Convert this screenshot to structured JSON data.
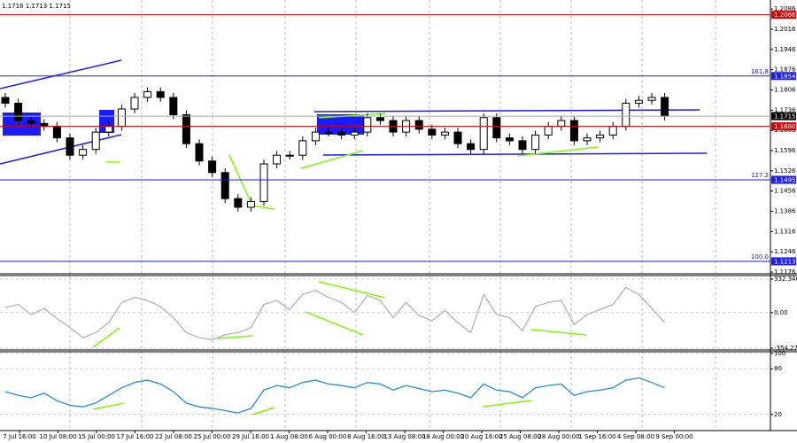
{
  "chart_data": [
    {
      "type": "candlestick",
      "title": "1.1716 1.1713 1.1715",
      "color": "#000000",
      "ylim": [
        1.1173,
        1.2117
      ],
      "yticks": [
        1.2086,
        1.2016,
        1.1946,
        1.1876,
        1.1806,
        1.1736,
        1.1666,
        1.1596,
        1.1526,
        1.1456,
        1.1386,
        1.1316,
        1.1246,
        1.1176
      ],
      "open": [
        1.178,
        1.176,
        1.17,
        1.169,
        1.168,
        1.164,
        1.158,
        1.16,
        1.166,
        1.168,
        1.174,
        1.178,
        1.18,
        1.178,
        1.172,
        1.162,
        1.156,
        1.152,
        1.143,
        1.14,
        1.142,
        1.155,
        1.158,
        1.158,
        1.163,
        1.166,
        1.166,
        1.165,
        1.166,
        1.171,
        1.17,
        1.166,
        1.17,
        1.167,
        1.165,
        1.166,
        1.162,
        1.16,
        1.171,
        1.164,
        1.163,
        1.16,
        1.165,
        1.168,
        1.17,
        1.163,
        1.164,
        1.165,
        1.168,
        1.176,
        1.177,
        1.178
      ],
      "high": [
        1.1795,
        1.1775,
        1.1715,
        1.1705,
        1.1695,
        1.1655,
        1.1615,
        1.1675,
        1.1695,
        1.1755,
        1.1795,
        1.1815,
        1.1815,
        1.1795,
        1.1735,
        1.1635,
        1.1575,
        1.1535,
        1.1445,
        1.1435,
        1.1565,
        1.1595,
        1.1595,
        1.1645,
        1.1675,
        1.1675,
        1.1675,
        1.1675,
        1.1725,
        1.1725,
        1.1715,
        1.1715,
        1.1715,
        1.1685,
        1.1675,
        1.1675,
        1.1635,
        1.1725,
        1.1725,
        1.1655,
        1.1645,
        1.1665,
        1.1695,
        1.1715,
        1.1715,
        1.1655,
        1.1665,
        1.1695,
        1.1775,
        1.1785,
        1.1795,
        1.1795
      ],
      "low": [
        1.1745,
        1.1685,
        1.1675,
        1.1665,
        1.1625,
        1.1565,
        1.1565,
        1.1585,
        1.1645,
        1.1665,
        1.1725,
        1.1765,
        1.1765,
        1.1705,
        1.1605,
        1.1545,
        1.1505,
        1.1415,
        1.1385,
        1.1385,
        1.1405,
        1.1535,
        1.1565,
        1.1565,
        1.1615,
        1.1645,
        1.1635,
        1.1635,
        1.1645,
        1.1685,
        1.1645,
        1.1645,
        1.1655,
        1.1635,
        1.1635,
        1.1605,
        1.1585,
        1.1585,
        1.1625,
        1.1615,
        1.1585,
        1.1585,
        1.1635,
        1.1665,
        1.1615,
        1.1615,
        1.1625,
        1.1635,
        1.1665,
        1.1745,
        1.1755,
        1.17
      ],
      "close": [
        1.176,
        1.17,
        1.169,
        1.168,
        1.164,
        1.158,
        1.16,
        1.166,
        1.168,
        1.174,
        1.178,
        1.18,
        1.178,
        1.172,
        1.162,
        1.156,
        1.152,
        1.143,
        1.14,
        1.142,
        1.155,
        1.158,
        1.158,
        1.163,
        1.166,
        1.166,
        1.165,
        1.166,
        1.171,
        1.17,
        1.166,
        1.17,
        1.167,
        1.165,
        1.166,
        1.162,
        1.16,
        1.171,
        1.164,
        1.163,
        1.16,
        1.165,
        1.168,
        1.17,
        1.163,
        1.164,
        1.165,
        1.168,
        1.176,
        1.177,
        1.178,
        1.1715
      ],
      "levels": [
        {
          "value": 1.2066,
          "label": "1.2066",
          "color": "#e00000"
        },
        {
          "value": 1.1854,
          "label": "1.1854",
          "color": "#1a1aff",
          "fib": "161.8"
        },
        {
          "value": 1.1715,
          "label": "1.1715",
          "color": "#000000"
        },
        {
          "value": 1.168,
          "label": "1.1680",
          "color": "#e00000"
        },
        {
          "value": 1.1495,
          "label": "1.1495",
          "color": "#1a1aff",
          "fib": "127.2"
        },
        {
          "value": 1.1213,
          "label": "1.1213",
          "color": "#1a1aff",
          "fib": "100.0"
        }
      ]
    },
    {
      "type": "line",
      "color": "#b4b4b4",
      "ylim": [
        -354.2779,
        332.3467
      ],
      "yticks": [
        332.3467,
        {
          "value": 0,
          "label": "0.00"
        },
        -354.2779
      ],
      "values": [
        50,
        80,
        -20,
        40,
        -60,
        -150,
        -250,
        -200,
        -100,
        100,
        150,
        120,
        60,
        -50,
        -200,
        -250,
        -270,
        -220,
        -200,
        -150,
        80,
        120,
        30,
        180,
        220,
        150,
        100,
        0,
        170,
        120,
        -50,
        100,
        -30,
        -80,
        20,
        -100,
        -200,
        180,
        -20,
        -50,
        -180,
        60,
        100,
        120,
        -120,
        -20,
        30,
        80,
        250,
        180,
        40,
        -100
      ]
    },
    {
      "type": "line",
      "color": "#1e8ce6",
      "ylim": [
        0,
        100
      ],
      "yticks": [
        100,
        80,
        20
      ],
      "values": [
        50,
        45,
        42,
        48,
        38,
        32,
        30,
        35,
        45,
        55,
        62,
        65,
        60,
        50,
        35,
        30,
        28,
        25,
        22,
        28,
        52,
        58,
        55,
        62,
        65,
        60,
        58,
        55,
        62,
        60,
        52,
        58,
        54,
        50,
        52,
        48,
        42,
        60,
        52,
        50,
        42,
        55,
        58,
        60,
        45,
        50,
        52,
        55,
        65,
        68,
        62,
        55
      ],
      "xlabels": [
        "7 Jul 16:00",
        "10 Jul 08:00",
        "15 Jul 00:00",
        "17 Jul 16:00",
        "22 Jul 08:00",
        "25 Jul 00:00",
        "29 Jul 16:00",
        "1 Aug 08:00",
        "6 Aug 00:00",
        "8 Aug 16:00",
        "13 Aug 08:00",
        "18 Aug 00:00",
        "20 Aug 16:00",
        "25 Aug 08:00",
        "28 Aug 00:00",
        "1 Sep 16:00",
        "4 Sep 08:00",
        "9 Sep 00:00"
      ]
    }
  ]
}
